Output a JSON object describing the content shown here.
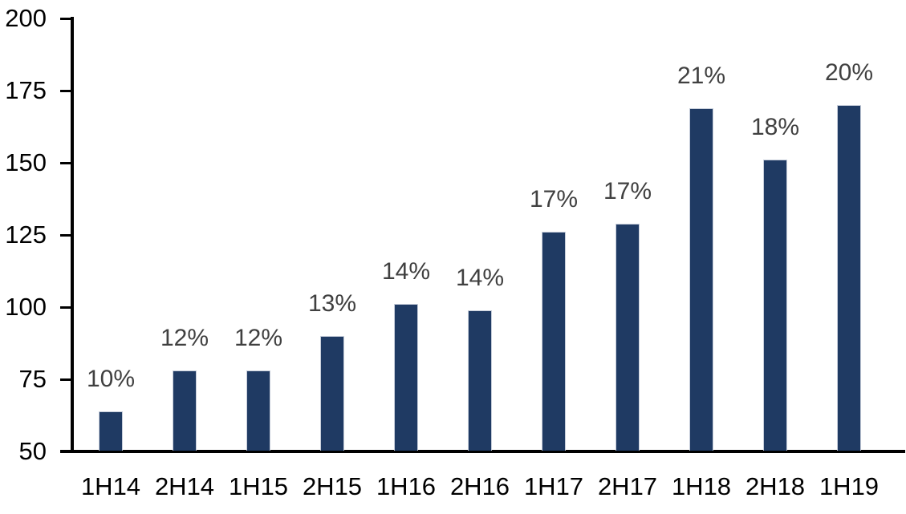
{
  "chart_data": {
    "type": "bar",
    "title": "",
    "xlabel": "",
    "ylabel": "",
    "categories": [
      "1H14",
      "2H14",
      "1H15",
      "2H15",
      "1H16",
      "2H16",
      "1H17",
      "2H17",
      "1H18",
      "2H18",
      "1H19"
    ],
    "values": [
      64,
      78,
      78,
      90,
      101,
      99,
      126,
      129,
      169,
      151,
      170
    ],
    "bar_labels": [
      "10%",
      "12%",
      "12%",
      "13%",
      "14%",
      "14%",
      "17%",
      "17%",
      "21%",
      "18%",
      "20%"
    ],
    "ylim": [
      50,
      200
    ],
    "yticks": [
      50,
      75,
      100,
      125,
      150,
      175,
      200
    ],
    "grid": false,
    "legend": null,
    "colors": {
      "bar_fill": "#1f3a63",
      "bar_border": "#c6cdda",
      "axis": "#000000",
      "tick_label": "#000000",
      "data_label": "#404040",
      "background": "#ffffff"
    }
  }
}
